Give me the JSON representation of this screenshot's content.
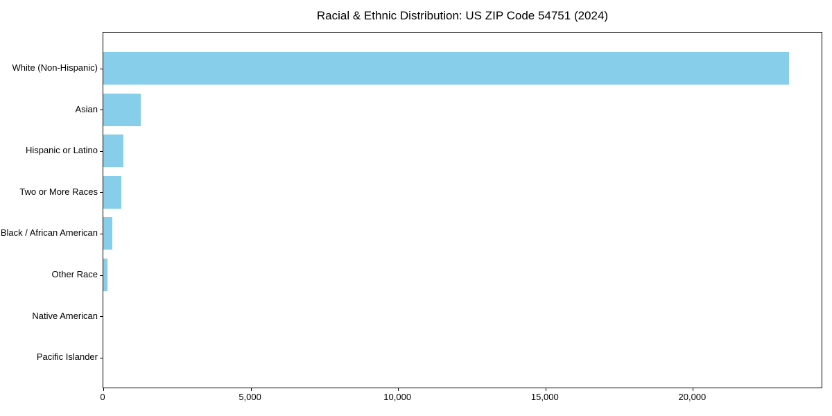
{
  "chart_data": {
    "type": "bar",
    "orientation": "horizontal",
    "title": "Racial & Ethnic Distribution: US ZIP Code 54751 (2024)",
    "categories": [
      "White (Non-Hispanic)",
      "Asian",
      "Hispanic or Latino",
      "Two or More Races",
      "Black / African American",
      "Other Race",
      "Native American",
      "Pacific Islander"
    ],
    "values": [
      23250,
      1280,
      680,
      620,
      300,
      130,
      0,
      0
    ],
    "xlabel": "",
    "ylabel": "",
    "xlim": [
      0,
      24412
    ],
    "xticks": [
      0,
      5000,
      10000,
      15000,
      20000
    ],
    "xtick_labels": [
      "0",
      "5,000",
      "10,000",
      "15,000",
      "20,000"
    ],
    "bar_color": "#87CEEB",
    "axis_color": "#000000",
    "grid": false,
    "legend": null
  }
}
